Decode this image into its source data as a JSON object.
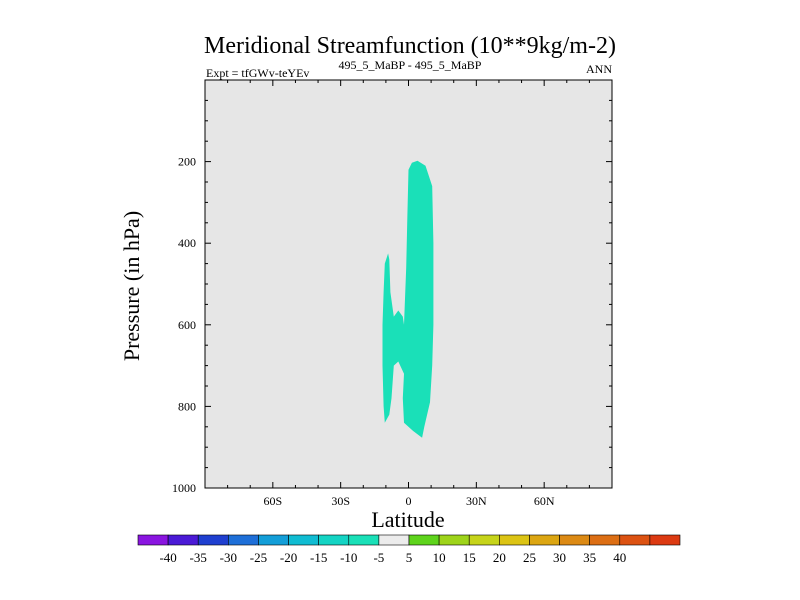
{
  "chart_data": {
    "type": "filled-contour",
    "title": "Meridional Streamfunction (10**9kg/m-2)",
    "subtitle_left": "Expt = tfGWv-teYEv",
    "subtitle_center": "495_5_MaBP - 495_5_MaBP",
    "subtitle_right": "ANN",
    "xlabel": "Latitude",
    "ylabel": "Pressure (in hPa)",
    "xlim": [
      -90,
      90
    ],
    "ylim": [
      0,
      1000
    ],
    "y_inverted": true,
    "x_ticks": [
      {
        "value": -60,
        "label": "60S"
      },
      {
        "value": -30,
        "label": "30S"
      },
      {
        "value": 0,
        "label": "0"
      },
      {
        "value": 30,
        "label": "30N"
      },
      {
        "value": 60,
        "label": "60N"
      }
    ],
    "y_ticks": [
      {
        "value": 200,
        "label": "200"
      },
      {
        "value": 400,
        "label": "400"
      },
      {
        "value": 600,
        "label": "600"
      },
      {
        "value": 800,
        "label": "800"
      },
      {
        "value": 1000,
        "label": "1000"
      }
    ],
    "background_level_color": "#e6e6e6",
    "regions": [
      {
        "name": "main-negative-cell",
        "level_range": [
          -10,
          -5
        ],
        "color": "#1ae0b8",
        "polygon": [
          [
            1.5,
            203
          ],
          [
            4,
            198
          ],
          [
            7.5,
            210
          ],
          [
            10.5,
            260
          ],
          [
            11,
            400
          ],
          [
            11,
            600
          ],
          [
            10.5,
            700
          ],
          [
            9.5,
            790
          ],
          [
            7,
            850
          ],
          [
            6,
            877
          ],
          [
            2,
            860
          ],
          [
            -2,
            840
          ],
          [
            -2.5,
            780
          ],
          [
            -2,
            720
          ],
          [
            -4.5,
            690
          ],
          [
            -6.5,
            700
          ],
          [
            -7.5,
            780
          ],
          [
            -8.5,
            820
          ],
          [
            -10.5,
            840
          ],
          [
            -11,
            800
          ],
          [
            -11.5,
            700
          ],
          [
            -11.5,
            600
          ],
          [
            -11,
            520
          ],
          [
            -10.5,
            450
          ],
          [
            -9,
            425
          ],
          [
            -8.5,
            440
          ],
          [
            -8,
            520
          ],
          [
            -6.5,
            580
          ],
          [
            -4.5,
            565
          ],
          [
            -2.5,
            580
          ],
          [
            -2,
            600
          ],
          [
            -1,
            460
          ],
          [
            -0.5,
            330
          ],
          [
            0,
            220
          ]
        ]
      }
    ],
    "legend": {
      "placement": "bottom",
      "colors": [
        "#8a15e0",
        "#4b1ad6",
        "#1f3fd0",
        "#1e6fd8",
        "#139ed8",
        "#10bcd2",
        "#14d4c4",
        "#1ae0b8",
        "#ececec",
        "#5ed41c",
        "#9ed41a",
        "#c6d41a",
        "#dcc414",
        "#dca612",
        "#dc8a14",
        "#dc6e14",
        "#dc5212",
        "#dc3a12"
      ],
      "labels": [
        "-40",
        "-35",
        "-30",
        "-25",
        "-20",
        "-15",
        "-10",
        "-5",
        "5",
        "10",
        "15",
        "20",
        "25",
        "30",
        "35",
        "40"
      ]
    }
  }
}
